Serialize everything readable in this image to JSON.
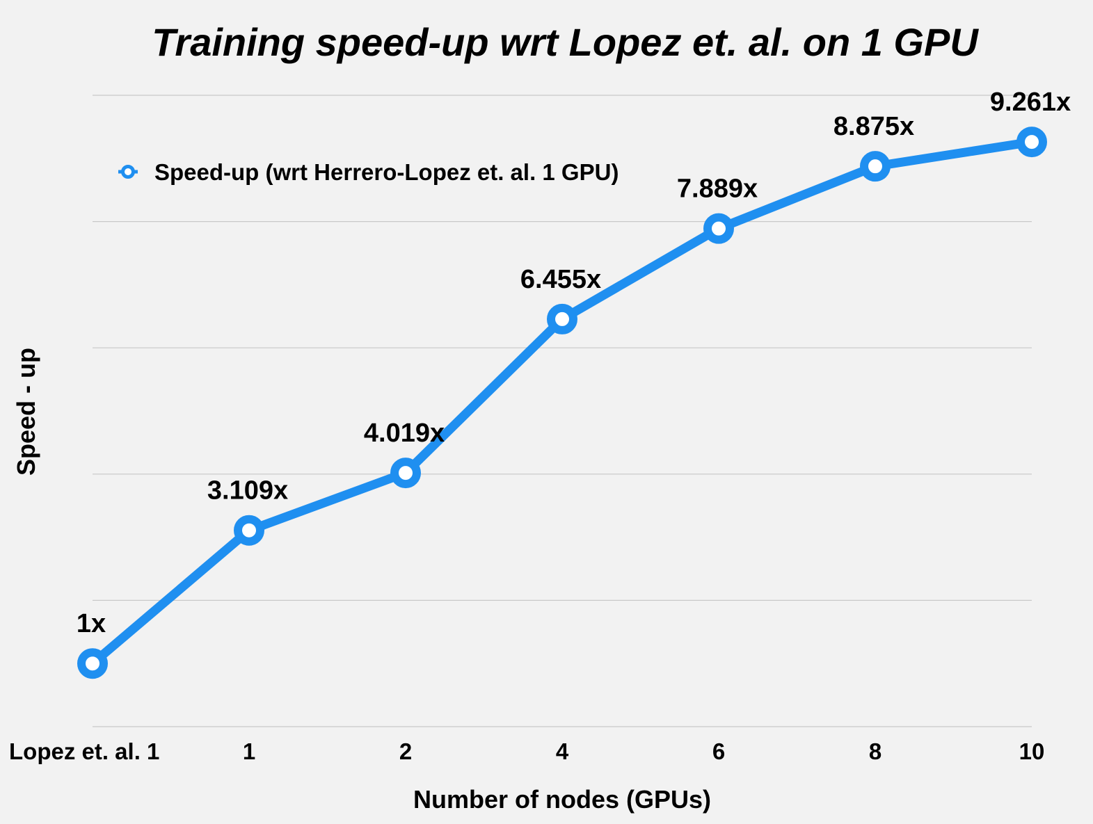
{
  "chart_data": {
    "type": "line",
    "title": "Training speed-up wrt Lopez et. al. on 1 GPU",
    "xlabel": "Number of nodes (GPUs)",
    "ylabel": "Speed - up",
    "categories": [
      "Lopez et. al. 1",
      "1",
      "2",
      "4",
      "6",
      "8",
      "10"
    ],
    "series": [
      {
        "name": "Speed-up (wrt Herrero-Lopez et. al. 1 GPU)",
        "values": [
          1,
          3.109,
          4.019,
          6.455,
          7.889,
          8.875,
          9.261
        ],
        "data_labels": [
          "1x",
          "3.109x",
          "4.019x",
          "6.455x",
          "7.889x",
          "8.875x",
          "9.261x"
        ],
        "color": "#1f8ff0"
      }
    ],
    "ylim": [
      0,
      10
    ],
    "grid": true,
    "legend_position": "top-left"
  }
}
